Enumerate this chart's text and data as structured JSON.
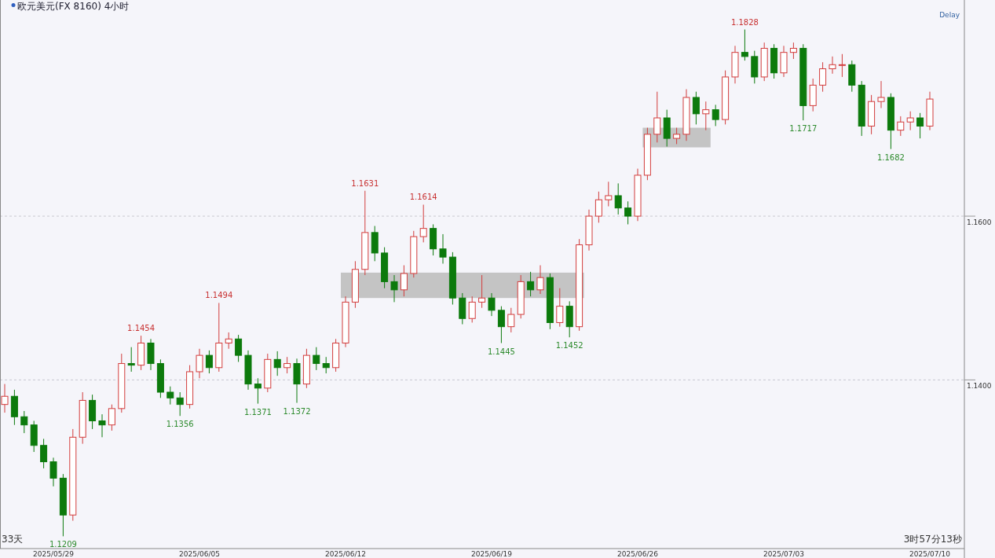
{
  "chart_data": {
    "type": "candlestick",
    "title": "欧元美元(FX 8160)  4小时",
    "categories": [
      null,
      null,
      null,
      null,
      null,
      "2025/05/29",
      null,
      null,
      null,
      null,
      null,
      null,
      null,
      null,
      null,
      null,
      null,
      null,
      null,
      null,
      "2025/06/05",
      null,
      null,
      null,
      null,
      null,
      null,
      null,
      null,
      null,
      null,
      null,
      null,
      null,
      null,
      "2025/06/12",
      null,
      null,
      null,
      null,
      null,
      null,
      null,
      null,
      null,
      null,
      null,
      null,
      null,
      null,
      "2025/06/19",
      null,
      null,
      null,
      null,
      null,
      null,
      null,
      null,
      null,
      null,
      null,
      null,
      null,
      null,
      "2025/06/26",
      null,
      null,
      null,
      null,
      null,
      null,
      null,
      null,
      null,
      null,
      null,
      null,
      null,
      null,
      "2025/07/03",
      null,
      null,
      null,
      null,
      null,
      null,
      null,
      null,
      null,
      null,
      null,
      null,
      null,
      null,
      "2025/07/10"
    ],
    "ohlc": [
      [
        1.137,
        1.1395,
        1.136,
        1.138
      ],
      [
        1.138,
        1.1388,
        1.1345,
        1.1355
      ],
      [
        1.1355,
        1.1362,
        1.1335,
        1.1345
      ],
      [
        1.1345,
        1.135,
        1.1312,
        1.132
      ],
      [
        1.132,
        1.1328,
        1.1292,
        1.13
      ],
      [
        1.13,
        1.1305,
        1.127,
        1.128
      ],
      [
        1.128,
        1.1285,
        1.1209,
        1.1235
      ],
      [
        1.1235,
        1.134,
        1.1228,
        1.133
      ],
      [
        1.133,
        1.1385,
        1.1322,
        1.1375
      ],
      [
        1.1375,
        1.1382,
        1.134,
        1.135
      ],
      [
        1.135,
        1.1358,
        1.133,
        1.1345
      ],
      [
        1.1345,
        1.137,
        1.1338,
        1.1365
      ],
      [
        1.1365,
        1.1432,
        1.136,
        1.142
      ],
      [
        1.142,
        1.144,
        1.141,
        1.1418
      ],
      [
        1.1418,
        1.1454,
        1.1412,
        1.1445
      ],
      [
        1.1445,
        1.145,
        1.1412,
        1.142
      ],
      [
        1.142,
        1.1425,
        1.1378,
        1.1385
      ],
      [
        1.1385,
        1.1392,
        1.137,
        1.1378
      ],
      [
        1.1378,
        1.1385,
        1.1356,
        1.137
      ],
      [
        1.137,
        1.1418,
        1.1365,
        1.141
      ],
      [
        1.141,
        1.1438,
        1.1402,
        1.143
      ],
      [
        1.143,
        1.1436,
        1.1408,
        1.1415
      ],
      [
        1.1415,
        1.1494,
        1.141,
        1.1445
      ],
      [
        1.1445,
        1.1458,
        1.1438,
        1.145
      ],
      [
        1.145,
        1.1455,
        1.1422,
        1.143
      ],
      [
        1.143,
        1.1436,
        1.1388,
        1.1395
      ],
      [
        1.1395,
        1.1402,
        1.1371,
        1.139
      ],
      [
        1.139,
        1.1432,
        1.1385,
        1.1425
      ],
      [
        1.1425,
        1.1435,
        1.1405,
        1.1415
      ],
      [
        1.1415,
        1.1428,
        1.1408,
        1.142
      ],
      [
        1.142,
        1.1426,
        1.1372,
        1.1395
      ],
      [
        1.1395,
        1.1438,
        1.139,
        1.143
      ],
      [
        1.143,
        1.144,
        1.1412,
        1.142
      ],
      [
        1.142,
        1.1428,
        1.1408,
        1.1415
      ],
      [
        1.1415,
        1.145,
        1.141,
        1.1445
      ],
      [
        1.1445,
        1.1502,
        1.144,
        1.1495
      ],
      [
        1.1495,
        1.1545,
        1.1488,
        1.1535
      ],
      [
        1.1535,
        1.1631,
        1.1528,
        1.158
      ],
      [
        1.158,
        1.1588,
        1.1545,
        1.1555
      ],
      [
        1.1555,
        1.1562,
        1.1512,
        1.152
      ],
      [
        1.152,
        1.1528,
        1.1495,
        1.151
      ],
      [
        1.151,
        1.154,
        1.1502,
        1.153
      ],
      [
        1.153,
        1.1582,
        1.1525,
        1.1575
      ],
      [
        1.1575,
        1.1614,
        1.1568,
        1.1585
      ],
      [
        1.1585,
        1.159,
        1.1552,
        1.156
      ],
      [
        1.156,
        1.1578,
        1.1542,
        1.155
      ],
      [
        1.155,
        1.1556,
        1.1492,
        1.15
      ],
      [
        1.15,
        1.1506,
        1.1468,
        1.1475
      ],
      [
        1.1475,
        1.1502,
        1.147,
        1.1495
      ],
      [
        1.1495,
        1.1528,
        1.1488,
        1.15
      ],
      [
        1.15,
        1.1506,
        1.1478,
        1.1485
      ],
      [
        1.1485,
        1.149,
        1.1445,
        1.1465
      ],
      [
        1.1465,
        1.1488,
        1.1458,
        1.148
      ],
      [
        1.148,
        1.1528,
        1.1475,
        1.152
      ],
      [
        1.152,
        1.1532,
        1.1502,
        1.151
      ],
      [
        1.151,
        1.154,
        1.1505,
        1.1525
      ],
      [
        1.1525,
        1.153,
        1.1462,
        1.147
      ],
      [
        1.147,
        1.1512,
        1.1465,
        1.149
      ],
      [
        1.149,
        1.1496,
        1.1452,
        1.1465
      ],
      [
        1.1465,
        1.1572,
        1.146,
        1.1565
      ],
      [
        1.1565,
        1.1608,
        1.1558,
        1.16
      ],
      [
        1.16,
        1.163,
        1.1592,
        1.162
      ],
      [
        1.162,
        1.1642,
        1.1612,
        1.1625
      ],
      [
        1.1625,
        1.164,
        1.1602,
        1.161
      ],
      [
        1.161,
        1.1618,
        1.159,
        1.16
      ],
      [
        1.16,
        1.1658,
        1.1594,
        1.165
      ],
      [
        1.165,
        1.1708,
        1.1644,
        1.17
      ],
      [
        1.17,
        1.1752,
        1.169,
        1.172
      ],
      [
        1.172,
        1.173,
        1.1685,
        1.1695
      ],
      [
        1.1695,
        1.1708,
        1.1688,
        1.17
      ],
      [
        1.17,
        1.1755,
        1.1692,
        1.1745
      ],
      [
        1.1745,
        1.1752,
        1.1712,
        1.1725
      ],
      [
        1.1725,
        1.174,
        1.1705,
        1.173
      ],
      [
        1.173,
        1.1736,
        1.171,
        1.1718
      ],
      [
        1.1718,
        1.1778,
        1.1712,
        1.177
      ],
      [
        1.177,
        1.1808,
        1.1762,
        1.18
      ],
      [
        1.18,
        1.1828,
        1.179,
        1.1795
      ],
      [
        1.1795,
        1.1802,
        1.1762,
        1.177
      ],
      [
        1.177,
        1.1812,
        1.1765,
        1.1805
      ],
      [
        1.1805,
        1.181,
        1.1768,
        1.1775
      ],
      [
        1.1775,
        1.1808,
        1.177,
        1.18
      ],
      [
        1.18,
        1.1812,
        1.1792,
        1.1805
      ],
      [
        1.1805,
        1.181,
        1.1717,
        1.1735
      ],
      [
        1.1735,
        1.1768,
        1.1728,
        1.176
      ],
      [
        1.176,
        1.1788,
        1.1752,
        1.178
      ],
      [
        1.178,
        1.1795,
        1.1774,
        1.1785
      ],
      [
        1.1785,
        1.1798,
        1.177,
        1.1785
      ],
      [
        1.1785,
        1.179,
        1.1752,
        1.176
      ],
      [
        1.176,
        1.1765,
        1.1698,
        1.171
      ],
      [
        1.171,
        1.1748,
        1.17,
        1.174
      ],
      [
        1.174,
        1.1765,
        1.1732,
        1.1745
      ],
      [
        1.1745,
        1.175,
        1.1682,
        1.1705
      ],
      [
        1.1705,
        1.1722,
        1.1698,
        1.1715
      ],
      [
        1.1715,
        1.1728,
        1.1705,
        1.172
      ],
      [
        1.172,
        1.1726,
        1.1695,
        1.171
      ],
      [
        1.171,
        1.1752,
        1.1705,
        1.1743
      ]
    ],
    "ylim": [
      1.1194,
      1.1864
    ],
    "yticks": [
      {
        "value": 1.14,
        "label": "1.1400"
      },
      {
        "value": 1.16,
        "label": "1.1600"
      }
    ],
    "grid": "y",
    "bands": [
      {
        "axis": "y",
        "from": 1.15,
        "to": 1.1531,
        "color": "#c4c4c4"
      },
      {
        "axis": "y",
        "from": 1.1684,
        "to": 1.1708,
        "color": "#c4c4c4"
      }
    ],
    "annotations": [
      {
        "text": "1.1828",
        "y": 1.1828
      },
      {
        "text": "1.1631",
        "y": 1.1631
      },
      {
        "text": "1.1614",
        "y": 1.1614
      },
      {
        "text": "1.1494",
        "y": 1.1494
      },
      {
        "text": "1.1454",
        "y": 1.1454
      },
      {
        "text": "1.1209",
        "y": 1.1209
      },
      {
        "text": "1.1356",
        "y": 1.1356
      },
      {
        "text": "1.1371",
        "y": 1.1371
      },
      {
        "text": "1.1372",
        "y": 1.1372
      },
      {
        "text": "1.1445",
        "y": 1.1445
      },
      {
        "text": "1.1452",
        "y": 1.1452
      },
      {
        "text": "1.1717",
        "y": 1.1717
      },
      {
        "text": "1.1682",
        "y": 1.1682
      },
      "Delay",
      "33天",
      "3时57分13秒"
    ]
  }
}
